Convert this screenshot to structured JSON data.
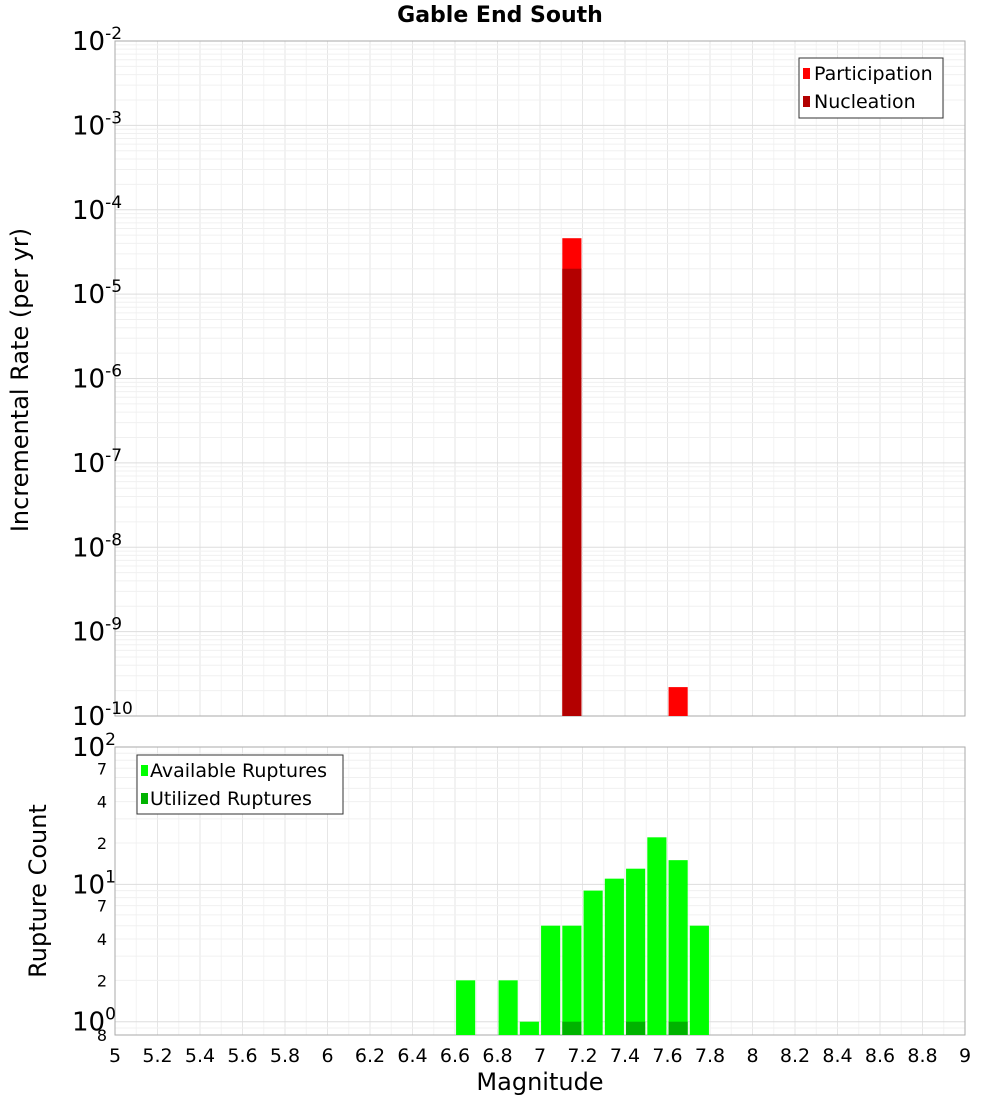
{
  "chart_data": [
    {
      "type": "bar",
      "title": "Gable End South",
      "ylabel": "Incremental Rate (per yr)",
      "xlabel": "Magnitude",
      "yscale": "log",
      "ylim": [
        1e-10,
        0.01
      ],
      "xlim": [
        5,
        9
      ],
      "bar_width": 0.09,
      "y_ticks": [
        {
          "base": "10",
          "exp": "-10"
        },
        {
          "base": "10",
          "exp": "-9"
        },
        {
          "base": "10",
          "exp": "-8"
        },
        {
          "base": "10",
          "exp": "-7"
        },
        {
          "base": "10",
          "exp": "-6"
        },
        {
          "base": "10",
          "exp": "-5"
        },
        {
          "base": "10",
          "exp": "-4"
        },
        {
          "base": "10",
          "exp": "-3"
        },
        {
          "base": "10",
          "exp": "-2"
        }
      ],
      "legend": {
        "position": "top-right",
        "entries": [
          "Participation",
          "Nucleation"
        ]
      },
      "series": [
        {
          "name": "Participation",
          "color": "#ff0000",
          "x": [
            7.15,
            7.65
          ],
          "values": [
            4.6e-05,
            2.2e-10
          ]
        },
        {
          "name": "Nucleation",
          "color": "#b30000",
          "x": [
            7.15
          ],
          "values": [
            2e-05
          ]
        }
      ]
    },
    {
      "type": "bar",
      "ylabel": "Rupture Count",
      "xlabel": "Magnitude",
      "yscale": "log",
      "ylim": [
        0.8,
        100
      ],
      "xlim": [
        5,
        9
      ],
      "bar_width": 0.09,
      "x_ticks": [
        "5",
        "5.2",
        "5.4",
        "5.6",
        "5.8",
        "6",
        "6.2",
        "6.4",
        "6.6",
        "6.8",
        "7",
        "7.2",
        "7.4",
        "7.6",
        "7.8",
        "8",
        "8.2",
        "8.4",
        "8.6",
        "8.8",
        "9"
      ],
      "y_major_ticks": [
        {
          "base": "10",
          "exp": "0"
        },
        {
          "base": "10",
          "exp": "1"
        },
        {
          "base": "10",
          "exp": "2"
        }
      ],
      "y_minor_ticks": [
        "8",
        "2",
        "4",
        "7",
        "2",
        "4",
        "7"
      ],
      "legend": {
        "position": "top-left",
        "entries": [
          "Available Ruptures",
          "Utilized Ruptures"
        ]
      },
      "series": [
        {
          "name": "Available Ruptures",
          "color": "#00ff00",
          "x": [
            6.65,
            6.85,
            6.95,
            7.05,
            7.15,
            7.25,
            7.35,
            7.45,
            7.55,
            7.65,
            7.75
          ],
          "values": [
            2,
            2,
            1,
            5,
            5,
            9,
            11,
            13,
            22,
            15,
            5
          ]
        },
        {
          "name": "Utilized Ruptures",
          "color": "#00b300",
          "x": [
            7.15,
            7.45,
            7.65
          ],
          "values": [
            1,
            1,
            1
          ]
        }
      ]
    }
  ]
}
